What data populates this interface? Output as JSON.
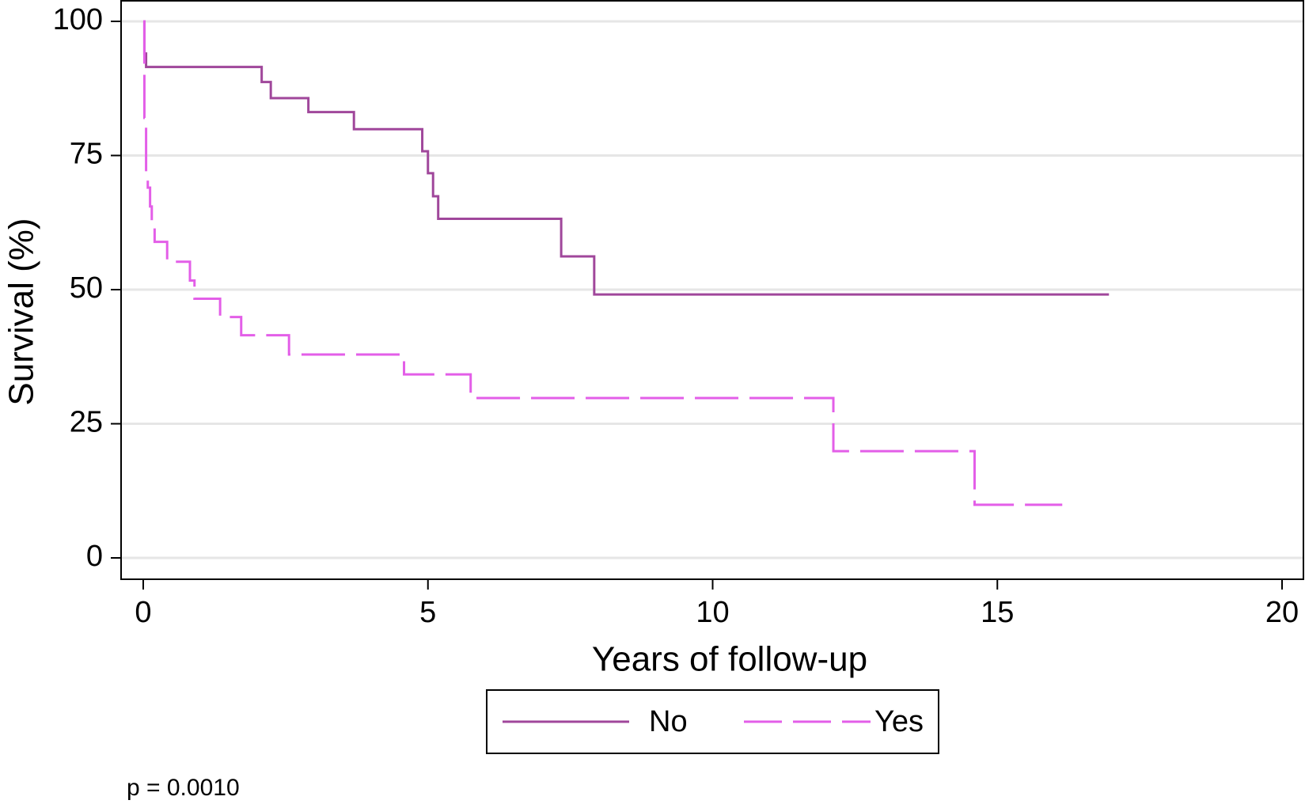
{
  "chart_data": {
    "type": "step",
    "x_label": "Years of follow-up",
    "y_label": "Survival (%)",
    "annotation": "p = 0.0010",
    "xlim": [
      0,
      20
    ],
    "ylim": [
      0,
      100
    ],
    "xticks": [
      0,
      5,
      10,
      15,
      20
    ],
    "yticks": [
      0,
      25,
      50,
      75,
      100
    ],
    "grid": true,
    "legend": "bottom",
    "series": [
      {
        "name": "No",
        "color": "#a0479b",
        "dash": false,
        "x": [
          0,
          0.02,
          0.05,
          2.08,
          2.24,
          2.9,
          3.7,
          4.9,
          5.0,
          5.09,
          5.18,
          7.34,
          7.92,
          16.96
        ],
        "values": [
          100,
          94,
          91.5,
          88.7,
          85.7,
          83.1,
          79.9,
          75.8,
          71.7,
          67.4,
          63.2,
          56.2,
          49.1,
          49.1
        ]
      },
      {
        "name": "Yes",
        "color": "#e35ee8",
        "dash": true,
        "x": [
          0,
          0.02,
          0.05,
          0.08,
          0.12,
          0.15,
          0.2,
          0.42,
          0.82,
          0.9,
          1.35,
          1.72,
          2.56,
          4.58,
          5.75,
          12.12,
          14.6,
          16.14
        ],
        "values": [
          100,
          82,
          72,
          69,
          65.5,
          62.1,
          58.9,
          55.2,
          51.7,
          48.3,
          44.9,
          41.5,
          37.9,
          34.2,
          29.8,
          19.9,
          9.9,
          9.9
        ]
      }
    ]
  }
}
